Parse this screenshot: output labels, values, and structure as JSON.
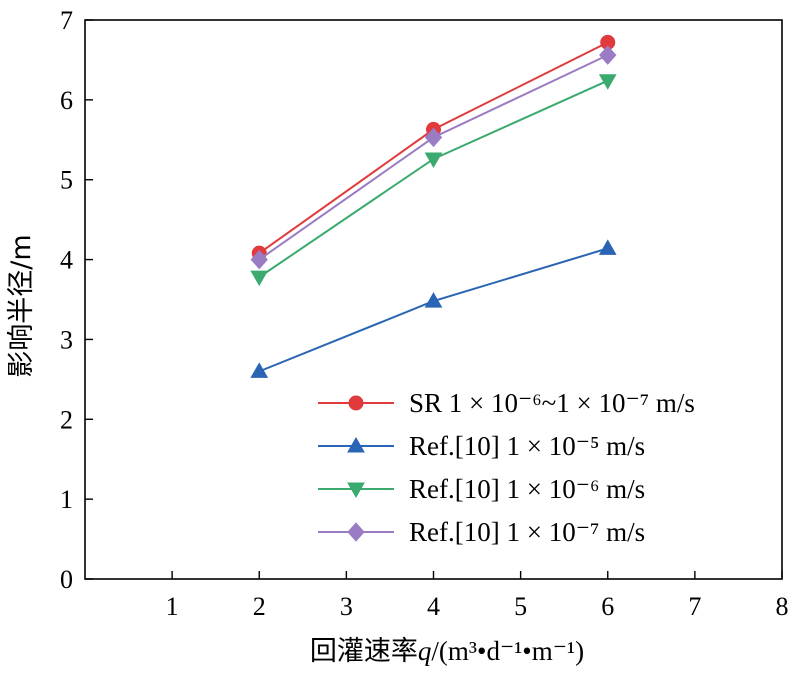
{
  "chart_data": {
    "type": "line",
    "xlabel_prefix": "回灌速率",
    "xlabel_var": "q",
    "xlabel_unit": "/(m³•d⁻¹•m⁻¹)",
    "ylabel": "影响半径/m",
    "xlim": [
      0,
      8
    ],
    "ylim": [
      0,
      7
    ],
    "xticks": [
      1,
      2,
      3,
      4,
      5,
      6,
      7,
      8
    ],
    "yticks": [
      0,
      1,
      2,
      3,
      4,
      5,
      6,
      7
    ],
    "grid": false,
    "legend_position": "bottom-right",
    "x": [
      2,
      4,
      6
    ],
    "series": [
      {
        "name": "SR 1 × 10⁻⁶~1 × 10⁻⁷ m/s",
        "marker": "circle",
        "color": "#e03a3c",
        "values": [
          4.08,
          5.63,
          6.72
        ]
      },
      {
        "name": "Ref.[10] 1 × 10⁻⁵ m/s",
        "marker": "triangle-up",
        "color": "#2a64b4",
        "values": [
          2.6,
          3.48,
          4.14
        ]
      },
      {
        "name": "Ref.[10] 1 × 10⁻⁶ m/s",
        "marker": "triangle-down",
        "color": "#3aaa6e",
        "values": [
          3.78,
          5.26,
          6.24
        ]
      },
      {
        "name": "Ref.[10] 1 × 10⁻⁷ m/s",
        "marker": "diamond",
        "color": "#9a7cc4",
        "values": [
          4.0,
          5.53,
          6.56
        ]
      }
    ]
  }
}
